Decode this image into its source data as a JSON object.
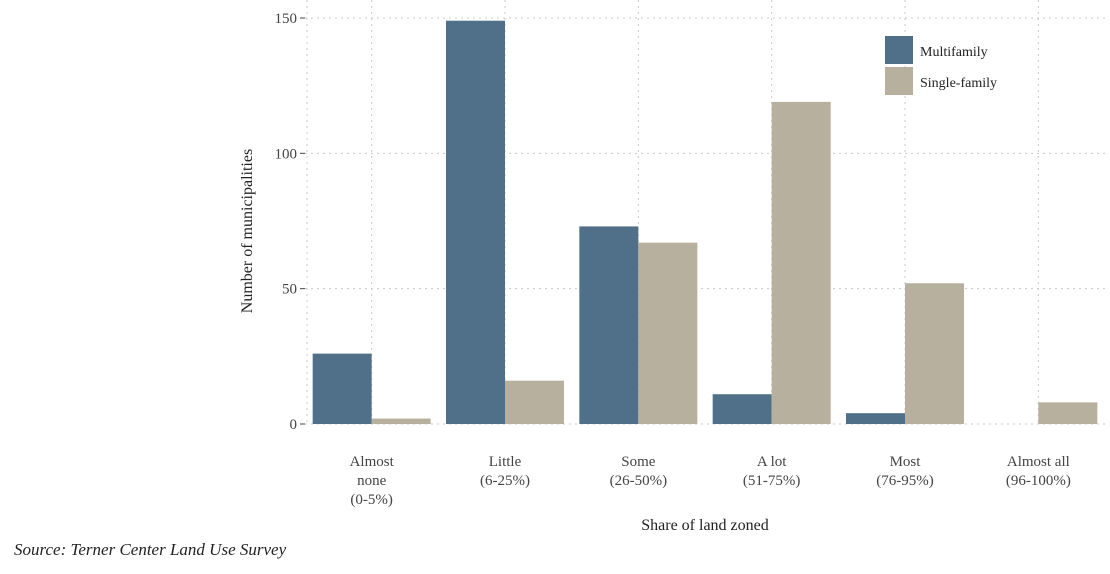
{
  "chart_data": {
    "type": "bar",
    "categories": [
      [
        "Almost",
        "none",
        "(0-5%)"
      ],
      [
        "Little",
        "(6-25%)"
      ],
      [
        "Some",
        "(26-50%)"
      ],
      [
        "A lot",
        "(51-75%)"
      ],
      [
        "Most",
        "(76-95%)"
      ],
      [
        "Almost all",
        "(96-100%)"
      ]
    ],
    "series": [
      {
        "name": "Multifamily",
        "color": "#4f7088",
        "values": [
          26,
          149,
          73,
          11,
          4,
          0
        ]
      },
      {
        "name": "Single-family",
        "color": "#b8b09e",
        "values": [
          2,
          16,
          67,
          119,
          52,
          8
        ]
      }
    ],
    "xlabel": "Share of land zoned",
    "ylabel": "Number of municipalities",
    "ylim": [
      0,
      150
    ],
    "yticks": [
      0,
      50,
      100,
      150
    ],
    "grid": true,
    "legend_position": "top-right"
  },
  "source": "Source: Terner Center Land Use Survey"
}
